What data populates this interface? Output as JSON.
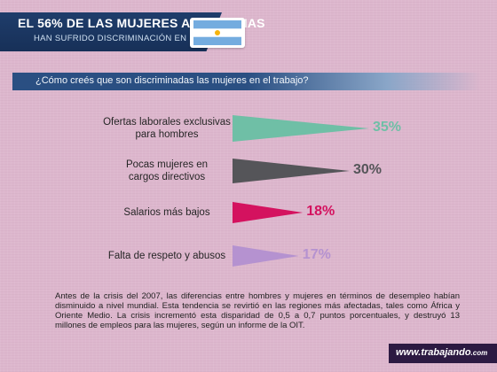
{
  "header": {
    "title": "EL 56% DE LAS MUJERES ARGENTINAS",
    "subtitle": "HAN SUFRIDO DISCRIMINACIÓN EN EL TRABAJO"
  },
  "question": "¿Cómo creés que son discriminadas las mujeres en el trabajo?",
  "chart_data": {
    "type": "bar",
    "title": "",
    "xlabel": "",
    "ylabel": "",
    "xlim": [
      0,
      35
    ],
    "grid": false,
    "categories": [
      [
        "Ofertas laborales exclusivas",
        "para hombres"
      ],
      [
        "Pocas mujeres en",
        "cargos directivos"
      ],
      [
        "Salarios más bajos"
      ],
      [
        "Falta de respeto y abusos"
      ]
    ],
    "values": [
      35,
      30,
      18,
      17
    ],
    "value_labels": [
      "35%",
      "30%",
      "18%",
      "17%"
    ],
    "colors": [
      "#6fbfa6",
      "#555559",
      "#d4125f",
      "#b592d0"
    ]
  },
  "footnote": "Antes de la crisis del 2007, las diferencias entre hombres y mujeres en términos de desempleo habían disminuido a nivel mundial. Esta tendencia se revirtió en las regiones más afectadas, tales como África y Oriente Medio. La crisis incrementó esta disparidad de 0,5 a 0,7 puntos porcentuales, y destruyó 13 millones de empleos para las mujeres, según un informe de la OIT.",
  "brand": {
    "name": "www.trabajando",
    "suffix": ".com"
  },
  "flag": {
    "stripe_color": "#74acdf",
    "sun_color": "#f6b40e"
  }
}
